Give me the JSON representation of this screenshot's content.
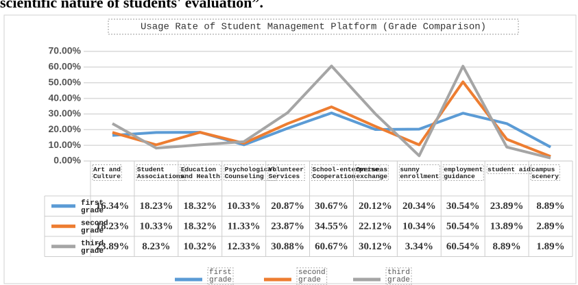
{
  "caption_fragment": "scientific nature of students' evaluation”.",
  "chart_data": {
    "type": "line",
    "title": "Usage Rate of Student Management Platform (Grade Comparison)",
    "categories": [
      "Art and Culture",
      "Student Associations",
      "Education and Health",
      "Psychological Counseling",
      "Volunteer Services",
      "School-enterprise Cooperation",
      "Overseas exchange",
      "sunny enrollment",
      "employment guidance",
      "student aid",
      "campus scenery"
    ],
    "series": [
      {
        "name": "first grade",
        "color": "#5b9bd5",
        "values": [
          16.34,
          18.23,
          18.32,
          10.33,
          20.87,
          30.67,
          20.12,
          20.34,
          30.54,
          23.89,
          8.89
        ],
        "value_labels": [
          "16.34%",
          "18.23%",
          "18.32%",
          "10.33%",
          "20.87%",
          "30.67%",
          "20.12%",
          "20.34%",
          "30.54%",
          "23.89%",
          "8.89%"
        ]
      },
      {
        "name": "second grade",
        "color": "#ed7d31",
        "values": [
          18.23,
          10.33,
          18.32,
          11.33,
          23.87,
          34.55,
          22.12,
          10.34,
          50.54,
          13.89,
          2.89
        ],
        "value_labels": [
          "18.23%",
          "10.33%",
          "18.32%",
          "11.33%",
          "23.87%",
          "34.55%",
          "22.12%",
          "10.34%",
          "50.54%",
          "13.89%",
          "2.89%"
        ]
      },
      {
        "name": "third grade",
        "color": "#a5a5a5",
        "values": [
          23.89,
          8.23,
          10.32,
          12.33,
          30.88,
          60.67,
          30.12,
          3.34,
          60.54,
          8.89,
          1.89
        ],
        "value_labels": [
          "23.89%",
          "8.23%",
          "10.32%",
          "12.33%",
          "30.88%",
          "60.67%",
          "30.12%",
          "3.34%",
          "60.54%",
          "8.89%",
          "1.89%"
        ]
      }
    ],
    "ylim": [
      0,
      70
    ],
    "yticks": [
      {
        "value": 0,
        "label": "0.00%"
      },
      {
        "value": 10,
        "label": "10.00%"
      },
      {
        "value": 20,
        "label": "20.00%"
      },
      {
        "value": 30,
        "label": "30.00%"
      },
      {
        "value": 40,
        "label": "40.00%"
      },
      {
        "value": 50,
        "label": "50.00%"
      },
      {
        "value": 60,
        "label": "60.00%"
      },
      {
        "value": 70,
        "label": "70.00%"
      }
    ],
    "grid": true
  }
}
